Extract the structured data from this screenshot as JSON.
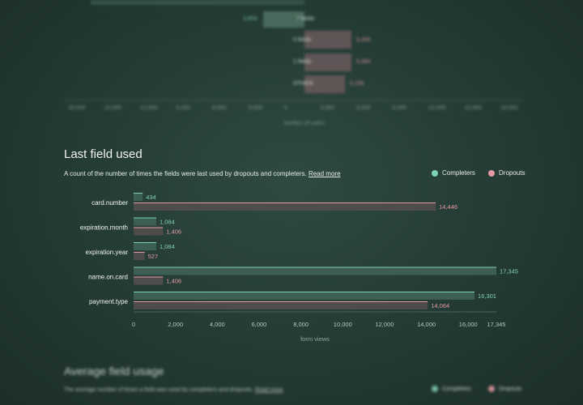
{
  "top_chart": {
    "rows": [
      {
        "label": "7 fields",
        "left_value": "3,953",
        "right_value": ""
      },
      {
        "label": "0 fields",
        "left_value": "",
        "right_value": "5,484"
      },
      {
        "label": "1 fields",
        "left_value": "",
        "right_value": "5,484"
      },
      {
        "label": "OTHER",
        "left_value": "",
        "right_value": "5,156"
      }
    ],
    "ticks": [
      "18,000",
      "15,000",
      "12,000",
      "9,000",
      "6,000",
      "3,000",
      "0",
      "3,000",
      "6,000",
      "9,000",
      "12,000",
      "15,000",
      "18,000"
    ],
    "xlabel": "number of users"
  },
  "section": {
    "title": "Last field used",
    "subtitle": "A count of the number of times the fields were last used by dropouts and completers.",
    "read_more": "Read more"
  },
  "legend": {
    "completers": "Completers",
    "dropouts": "Dropouts",
    "completers_color": "#7fd1b3",
    "dropouts_color": "#e49aa3"
  },
  "chart_data": {
    "type": "bar",
    "orientation": "horizontal",
    "categories": [
      "card.number",
      "expiration.month",
      "expiration.year",
      "name.on.card",
      "payment.type"
    ],
    "series": [
      {
        "name": "Completers",
        "values": [
          434,
          1084,
          1084,
          17345,
          16301
        ]
      },
      {
        "name": "Dropouts",
        "values": [
          14446,
          1406,
          527,
          1406,
          14064
        ]
      }
    ],
    "value_labels": {
      "Completers": [
        "434",
        "1,084",
        "1,084",
        "17,345",
        "16,301"
      ],
      "Dropouts": [
        "14,446",
        "1,406",
        "527",
        "1,406",
        "14,064"
      ]
    },
    "xlabel": "form views",
    "xlim": [
      0,
      17345
    ],
    "xticks": [
      0,
      2000,
      4000,
      6000,
      8000,
      10000,
      12000,
      14000,
      16000,
      17345
    ],
    "xtick_labels": [
      "0",
      "2,000",
      "4,000",
      "6,000",
      "8,000",
      "10,000",
      "12,000",
      "14,000",
      "16,000",
      "17,345"
    ],
    "legend_position": "top-right"
  },
  "next_section": {
    "title": "Average field usage",
    "subtitle": "The average number of times a field was used by completers and dropouts.",
    "read_more": "Read more"
  }
}
